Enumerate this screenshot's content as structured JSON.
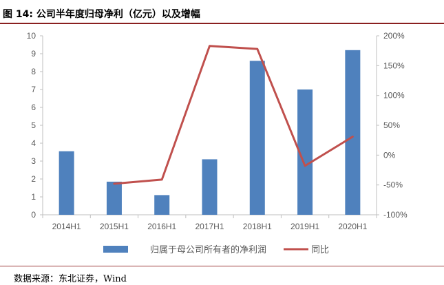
{
  "figure": {
    "title": "图  14: 公司半年度归母净利（亿元）以及增幅",
    "source": "数据来源：东北证券，Wind"
  },
  "colors": {
    "bar": "#4f81bd",
    "line": "#c0504d",
    "rule": "#8a1f1f"
  },
  "chart_data": {
    "type": "bar+line",
    "categories": [
      "2014H1",
      "2015H1",
      "2016H1",
      "2017H1",
      "2018H1",
      "2019H1",
      "2020H1"
    ],
    "series": [
      {
        "name": "归属于母公司所有者的净利润",
        "type": "bar",
        "axis": "left",
        "values": [
          3.55,
          1.85,
          1.1,
          3.1,
          8.6,
          7.0,
          9.2
        ]
      },
      {
        "name": "同比",
        "type": "line",
        "axis": "right",
        "values": [
          null,
          -48,
          -41,
          183,
          178,
          -18,
          31
        ]
      }
    ],
    "yleft": {
      "min": 0,
      "max": 10,
      "step": 1,
      "ticks": [
        "0",
        "1",
        "2",
        "3",
        "4",
        "5",
        "6",
        "7",
        "8",
        "9",
        "10"
      ]
    },
    "yright": {
      "min": -100,
      "max": 200,
      "step": 50,
      "ticks": [
        "-100%",
        "-50%",
        "0%",
        "50%",
        "100%",
        "150%",
        "200%"
      ]
    },
    "legend": {
      "position": "bottom",
      "entries": [
        "归属于母公司所有者的净利润",
        "同比"
      ]
    },
    "grid": false
  }
}
